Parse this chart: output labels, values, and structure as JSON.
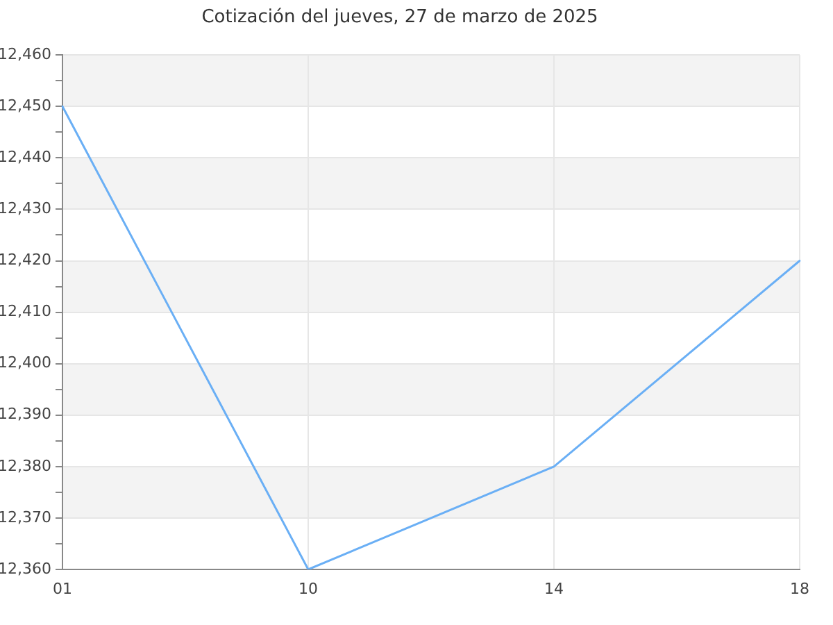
{
  "chart_data": {
    "type": "line",
    "title": "Cotización del jueves, 27 de marzo de 2025",
    "categories": [
      "01",
      "10",
      "14",
      "18"
    ],
    "series": [
      {
        "color": "#6aaff5",
        "values": [
          12450,
          12360,
          12380,
          12420
        ]
      }
    ],
    "ylim": [
      12360,
      12460
    ],
    "yticks": [
      {
        "value": 12360,
        "label": "12,360"
      },
      {
        "value": 12365,
        "label": null
      },
      {
        "value": 12370,
        "label": "12,370"
      },
      {
        "value": 12375,
        "label": null
      },
      {
        "value": 12380,
        "label": "12,380"
      },
      {
        "value": 12385,
        "label": null
      },
      {
        "value": 12390,
        "label": "12,390"
      },
      {
        "value": 12395,
        "label": null
      },
      {
        "value": 12400,
        "label": "12,400"
      },
      {
        "value": 12405,
        "label": null
      },
      {
        "value": 12410,
        "label": "12,410"
      },
      {
        "value": 12415,
        "label": null
      },
      {
        "value": 12420,
        "label": "12,420"
      },
      {
        "value": 12425,
        "label": null
      },
      {
        "value": 12430,
        "label": "12,430"
      },
      {
        "value": 12435,
        "label": null
      },
      {
        "value": 12440,
        "label": "12,440"
      },
      {
        "value": 12445,
        "label": null
      },
      {
        "value": 12450,
        "label": "12,450"
      },
      {
        "value": 12455,
        "label": null
      },
      {
        "value": 12460,
        "label": "12,460"
      }
    ],
    "grid": true,
    "marker": "none",
    "line_style": "solid"
  }
}
